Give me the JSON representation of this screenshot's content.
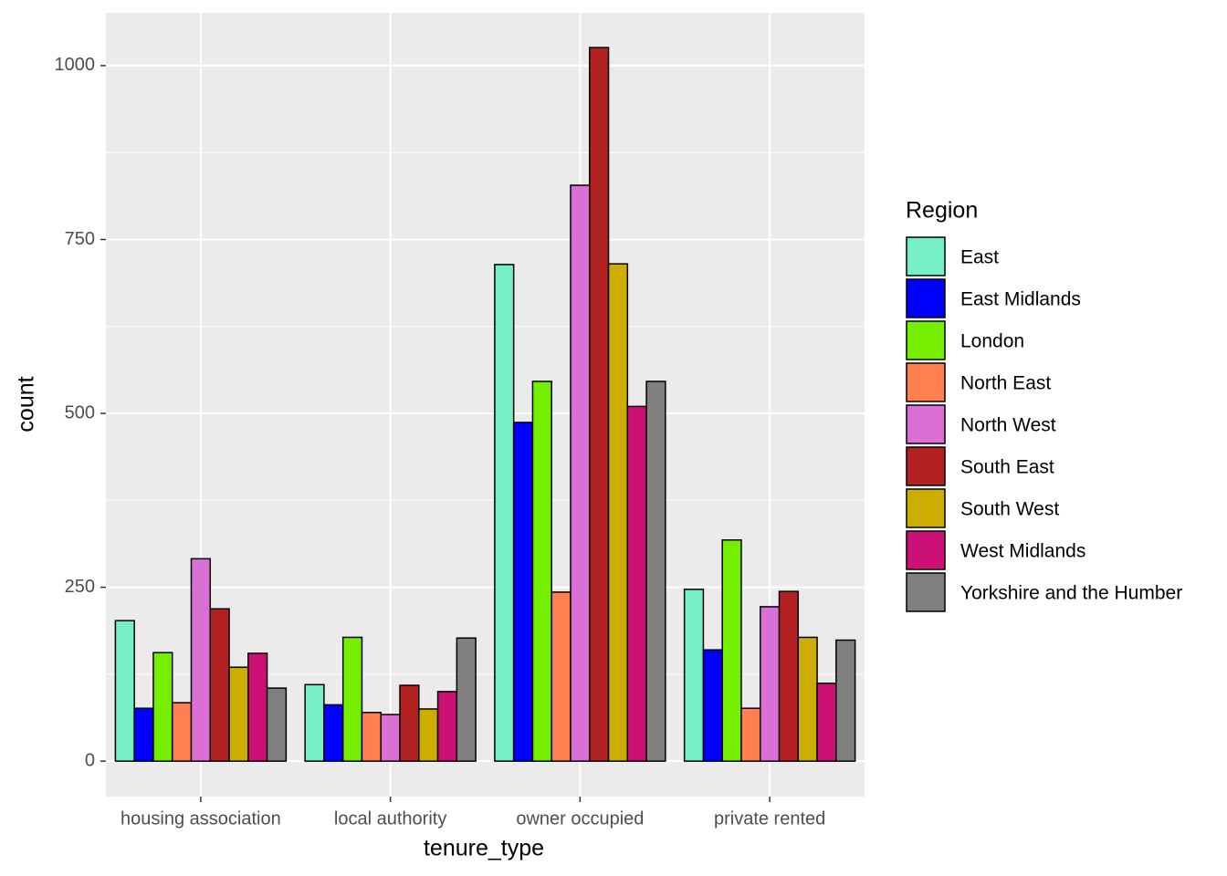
{
  "chart_data": {
    "type": "bar",
    "x_label": "tenure_type",
    "y_label": "count",
    "legend_title": "Region",
    "categories": [
      "housing association",
      "local authority",
      "owner occupied",
      "private rented"
    ],
    "series": [
      {
        "name": "East",
        "color": "#76EEC6",
        "values": [
          202,
          110,
          714,
          247
        ]
      },
      {
        "name": "East Midlands",
        "color": "#0000FF",
        "values": [
          76,
          81,
          487,
          160
        ]
      },
      {
        "name": "London",
        "color": "#76EE00",
        "values": [
          156,
          178,
          546,
          318
        ]
      },
      {
        "name": "North East",
        "color": "#FF7F50",
        "values": [
          84,
          70,
          243,
          76
        ]
      },
      {
        "name": "North West",
        "color": "#DA70D6",
        "values": [
          291,
          67,
          828,
          222
        ]
      },
      {
        "name": "South East",
        "color": "#B22222",
        "values": [
          219,
          109,
          1026,
          244
        ]
      },
      {
        "name": "South West",
        "color": "#CDAD00",
        "values": [
          135,
          75,
          715,
          178
        ]
      },
      {
        "name": "West Midlands",
        "color": "#CD1076",
        "values": [
          155,
          100,
          510,
          112
        ]
      },
      {
        "name": "Yorkshire and the Humber",
        "color": "#808080",
        "values": [
          105,
          177,
          546,
          174
        ]
      }
    ],
    "ylim": [
      -51,
      1076
    ],
    "yticks": [
      0,
      250,
      500,
      750,
      1000
    ],
    "grid": true,
    "legend": "right"
  }
}
